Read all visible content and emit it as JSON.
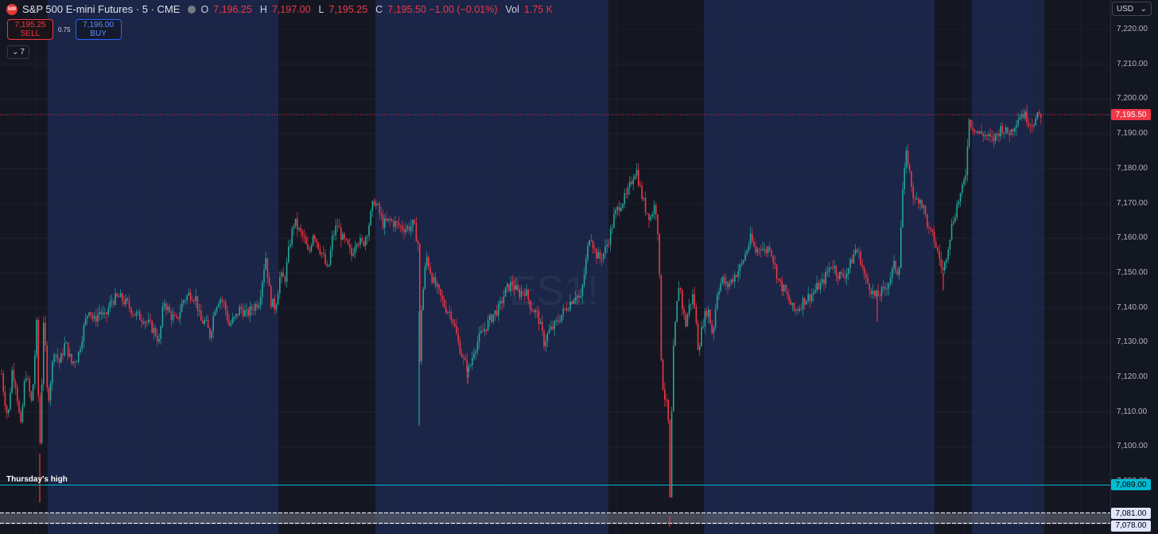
{
  "header": {
    "logo_text": "500",
    "title": "S&P 500 E-mini Futures · 5 · CME",
    "ohlc": [
      {
        "label": "O",
        "value": "7,196.25"
      },
      {
        "label": "H",
        "value": "7,197.00"
      },
      {
        "label": "L",
        "value": "7,195.25"
      },
      {
        "label": "C",
        "value": "7,195.50 −1.00 (−0.01%)"
      },
      {
        "label": "Vol",
        "value": "1.75 K"
      }
    ]
  },
  "trade": {
    "sell_price": "7,195.25",
    "sell_label": "SELL",
    "spread": "0.75",
    "buy_price": "7,196.00",
    "buy_label": "BUY"
  },
  "indicators": {
    "count": "7"
  },
  "currency": "USD",
  "watermark": "ES1!",
  "price_axis": {
    "ticks": [
      "7,220.00",
      "7,210.00",
      "7,200.00",
      "7,190.00",
      "7,180.00",
      "7,170.00",
      "7,160.00",
      "7,150.00",
      "7,140.00",
      "7,130.00",
      "7,120.00",
      "7,110.00",
      "7,100.00",
      "7,090.00"
    ]
  },
  "levels": {
    "current": {
      "label": "7,195.50",
      "color": "#f23645"
    },
    "thursday_high": {
      "name": "Thursday's high",
      "label": "7,089.00",
      "color": "#00bcd4"
    },
    "zone_top": {
      "label": "7,081.00"
    },
    "zone_bottom": {
      "label": "7,078.00"
    }
  },
  "colors": {
    "up": "#26a69a",
    "down": "#f23645",
    "session_bg": "#1a2547",
    "off_bg": "#141722"
  },
  "chart_data": {
    "type": "candlestick",
    "ylim": [
      7075,
      7225
    ],
    "path": [
      [
        0,
        7125
      ],
      [
        5,
        7115
      ],
      [
        10,
        7108
      ],
      [
        15,
        7122
      ],
      [
        20,
        7118
      ],
      [
        26,
        7105
      ],
      [
        32,
        7122
      ],
      [
        40,
        7112
      ],
      [
        46,
        7135
      ],
      [
        50,
        7098
      ],
      [
        55,
        7138
      ],
      [
        60,
        7112
      ],
      [
        68,
        7128
      ],
      [
        75,
        7124
      ],
      [
        82,
        7130
      ],
      [
        90,
        7124
      ],
      [
        98,
        7126
      ],
      [
        105,
        7134
      ],
      [
        112,
        7140
      ],
      [
        118,
        7136
      ],
      [
        125,
        7139
      ],
      [
        132,
        7137
      ],
      [
        140,
        7142
      ],
      [
        150,
        7143
      ],
      [
        160,
        7141
      ],
      [
        170,
        7138
      ],
      [
        180,
        7137
      ],
      [
        188,
        7135
      ],
      [
        195,
        7133
      ],
      [
        200,
        7130
      ],
      [
        206,
        7142
      ],
      [
        214,
        7138
      ],
      [
        222,
        7136
      ],
      [
        230,
        7142
      ],
      [
        238,
        7144
      ],
      [
        246,
        7143
      ],
      [
        252,
        7136
      ],
      [
        258,
        7136
      ],
      [
        264,
        7132
      ],
      [
        270,
        7140
      ],
      [
        276,
        7143
      ],
      [
        282,
        7141
      ],
      [
        288,
        7135
      ],
      [
        296,
        7137
      ],
      [
        302,
        7140
      ],
      [
        310,
        7138
      ],
      [
        318,
        7140
      ],
      [
        326,
        7142
      ],
      [
        334,
        7155
      ],
      [
        340,
        7142
      ],
      [
        346,
        7140
      ],
      [
        352,
        7149
      ],
      [
        358,
        7148
      ],
      [
        364,
        7158
      ],
      [
        370,
        7165
      ],
      [
        376,
        7162
      ],
      [
        382,
        7160
      ],
      [
        388,
        7155
      ],
      [
        394,
        7162
      ],
      [
        400,
        7158
      ],
      [
        406,
        7155
      ],
      [
        412,
        7150
      ],
      [
        418,
        7160
      ],
      [
        424,
        7164
      ],
      [
        430,
        7160
      ],
      [
        436,
        7158
      ],
      [
        442,
        7155
      ],
      [
        448,
        7160
      ],
      [
        456,
        7158
      ],
      [
        463,
        7163
      ],
      [
        470,
        7171
      ],
      [
        476,
        7168
      ],
      [
        482,
        7164
      ],
      [
        490,
        7165
      ],
      [
        498,
        7164
      ],
      [
        506,
        7163
      ],
      [
        514,
        7163
      ],
      [
        520,
        7164
      ],
      [
        526,
        7158
      ],
      [
        528,
        7120
      ],
      [
        530,
        7140
      ],
      [
        536,
        7155
      ],
      [
        544,
        7148
      ],
      [
        552,
        7144
      ],
      [
        560,
        7140
      ],
      [
        568,
        7138
      ],
      [
        576,
        7130
      ],
      [
        584,
        7124
      ],
      [
        590,
        7122
      ],
      [
        596,
        7128
      ],
      [
        604,
        7132
      ],
      [
        612,
        7135
      ],
      [
        620,
        7138
      ],
      [
        628,
        7140
      ],
      [
        636,
        7145
      ],
      [
        644,
        7147
      ],
      [
        652,
        7144
      ],
      [
        660,
        7145
      ],
      [
        668,
        7140
      ],
      [
        676,
        7138
      ],
      [
        684,
        7130
      ],
      [
        690,
        7133
      ],
      [
        698,
        7135
      ],
      [
        706,
        7138
      ],
      [
        712,
        7140
      ],
      [
        718,
        7142
      ],
      [
        724,
        7144
      ],
      [
        730,
        7142
      ],
      [
        736,
        7152
      ],
      [
        742,
        7162
      ],
      [
        748,
        7156
      ],
      [
        754,
        7154
      ],
      [
        760,
        7156
      ],
      [
        766,
        7160
      ],
      [
        772,
        7166
      ],
      [
        780,
        7170
      ],
      [
        788,
        7172
      ],
      [
        796,
        7178
      ],
      [
        800,
        7180
      ],
      [
        806,
        7173
      ],
      [
        812,
        7168
      ],
      [
        818,
        7166
      ],
      [
        824,
        7170
      ],
      [
        828,
        7160
      ],
      [
        832,
        7120
      ],
      [
        836,
        7114
      ],
      [
        840,
        7110
      ],
      [
        842,
        7080
      ],
      [
        846,
        7125
      ],
      [
        850,
        7138
      ],
      [
        854,
        7148
      ],
      [
        858,
        7140
      ],
      [
        862,
        7135
      ],
      [
        866,
        7140
      ],
      [
        872,
        7144
      ],
      [
        878,
        7128
      ],
      [
        884,
        7136
      ],
      [
        890,
        7140
      ],
      [
        896,
        7132
      ],
      [
        902,
        7145
      ],
      [
        908,
        7148
      ],
      [
        914,
        7146
      ],
      [
        920,
        7148
      ],
      [
        926,
        7150
      ],
      [
        932,
        7152
      ],
      [
        938,
        7156
      ],
      [
        944,
        7160
      ],
      [
        950,
        7156
      ],
      [
        956,
        7158
      ],
      [
        962,
        7156
      ],
      [
        968,
        7158
      ],
      [
        974,
        7152
      ],
      [
        980,
        7147
      ],
      [
        986,
        7145
      ],
      [
        992,
        7142
      ],
      [
        998,
        7139
      ],
      [
        1004,
        7140
      ],
      [
        1010,
        7142
      ],
      [
        1016,
        7143
      ],
      [
        1022,
        7144
      ],
      [
        1028,
        7146
      ],
      [
        1034,
        7147
      ],
      [
        1040,
        7150
      ],
      [
        1046,
        7153
      ],
      [
        1052,
        7150
      ],
      [
        1058,
        7149
      ],
      [
        1064,
        7150
      ],
      [
        1070,
        7153
      ],
      [
        1076,
        7157
      ],
      [
        1082,
        7154
      ],
      [
        1088,
        7148
      ],
      [
        1094,
        7146
      ],
      [
        1100,
        7143
      ],
      [
        1106,
        7144
      ],
      [
        1112,
        7145
      ],
      [
        1118,
        7148
      ],
      [
        1124,
        7152
      ],
      [
        1130,
        7150
      ],
      [
        1135,
        7174
      ],
      [
        1140,
        7185
      ],
      [
        1144,
        7178
      ],
      [
        1150,
        7170
      ],
      [
        1156,
        7172
      ],
      [
        1162,
        7168
      ],
      [
        1168,
        7162
      ],
      [
        1174,
        7160
      ],
      [
        1180,
        7155
      ],
      [
        1186,
        7150
      ],
      [
        1192,
        7158
      ],
      [
        1198,
        7165
      ],
      [
        1204,
        7170
      ],
      [
        1210,
        7174
      ],
      [
        1214,
        7178
      ],
      [
        1218,
        7194
      ],
      [
        1224,
        7192
      ],
      [
        1230,
        7190
      ],
      [
        1236,
        7190
      ],
      [
        1242,
        7189
      ],
      [
        1248,
        7188
      ],
      [
        1254,
        7190
      ],
      [
        1260,
        7192
      ],
      [
        1266,
        7190
      ],
      [
        1272,
        7191
      ],
      [
        1278,
        7194
      ],
      [
        1284,
        7196
      ],
      [
        1290,
        7195
      ],
      [
        1296,
        7193
      ],
      [
        1302,
        7194
      ],
      [
        1310,
        7196
      ]
    ],
    "spikes": [
      {
        "x": 527,
        "low": 7106
      },
      {
        "x": 842,
        "low": 7077
      },
      {
        "x": 50,
        "low": 7084
      },
      {
        "x": 1103,
        "low": 7136
      },
      {
        "x": 1186,
        "low": 7145
      },
      {
        "x": 588,
        "low": 7118
      }
    ],
    "last_close": 7195.5
  }
}
